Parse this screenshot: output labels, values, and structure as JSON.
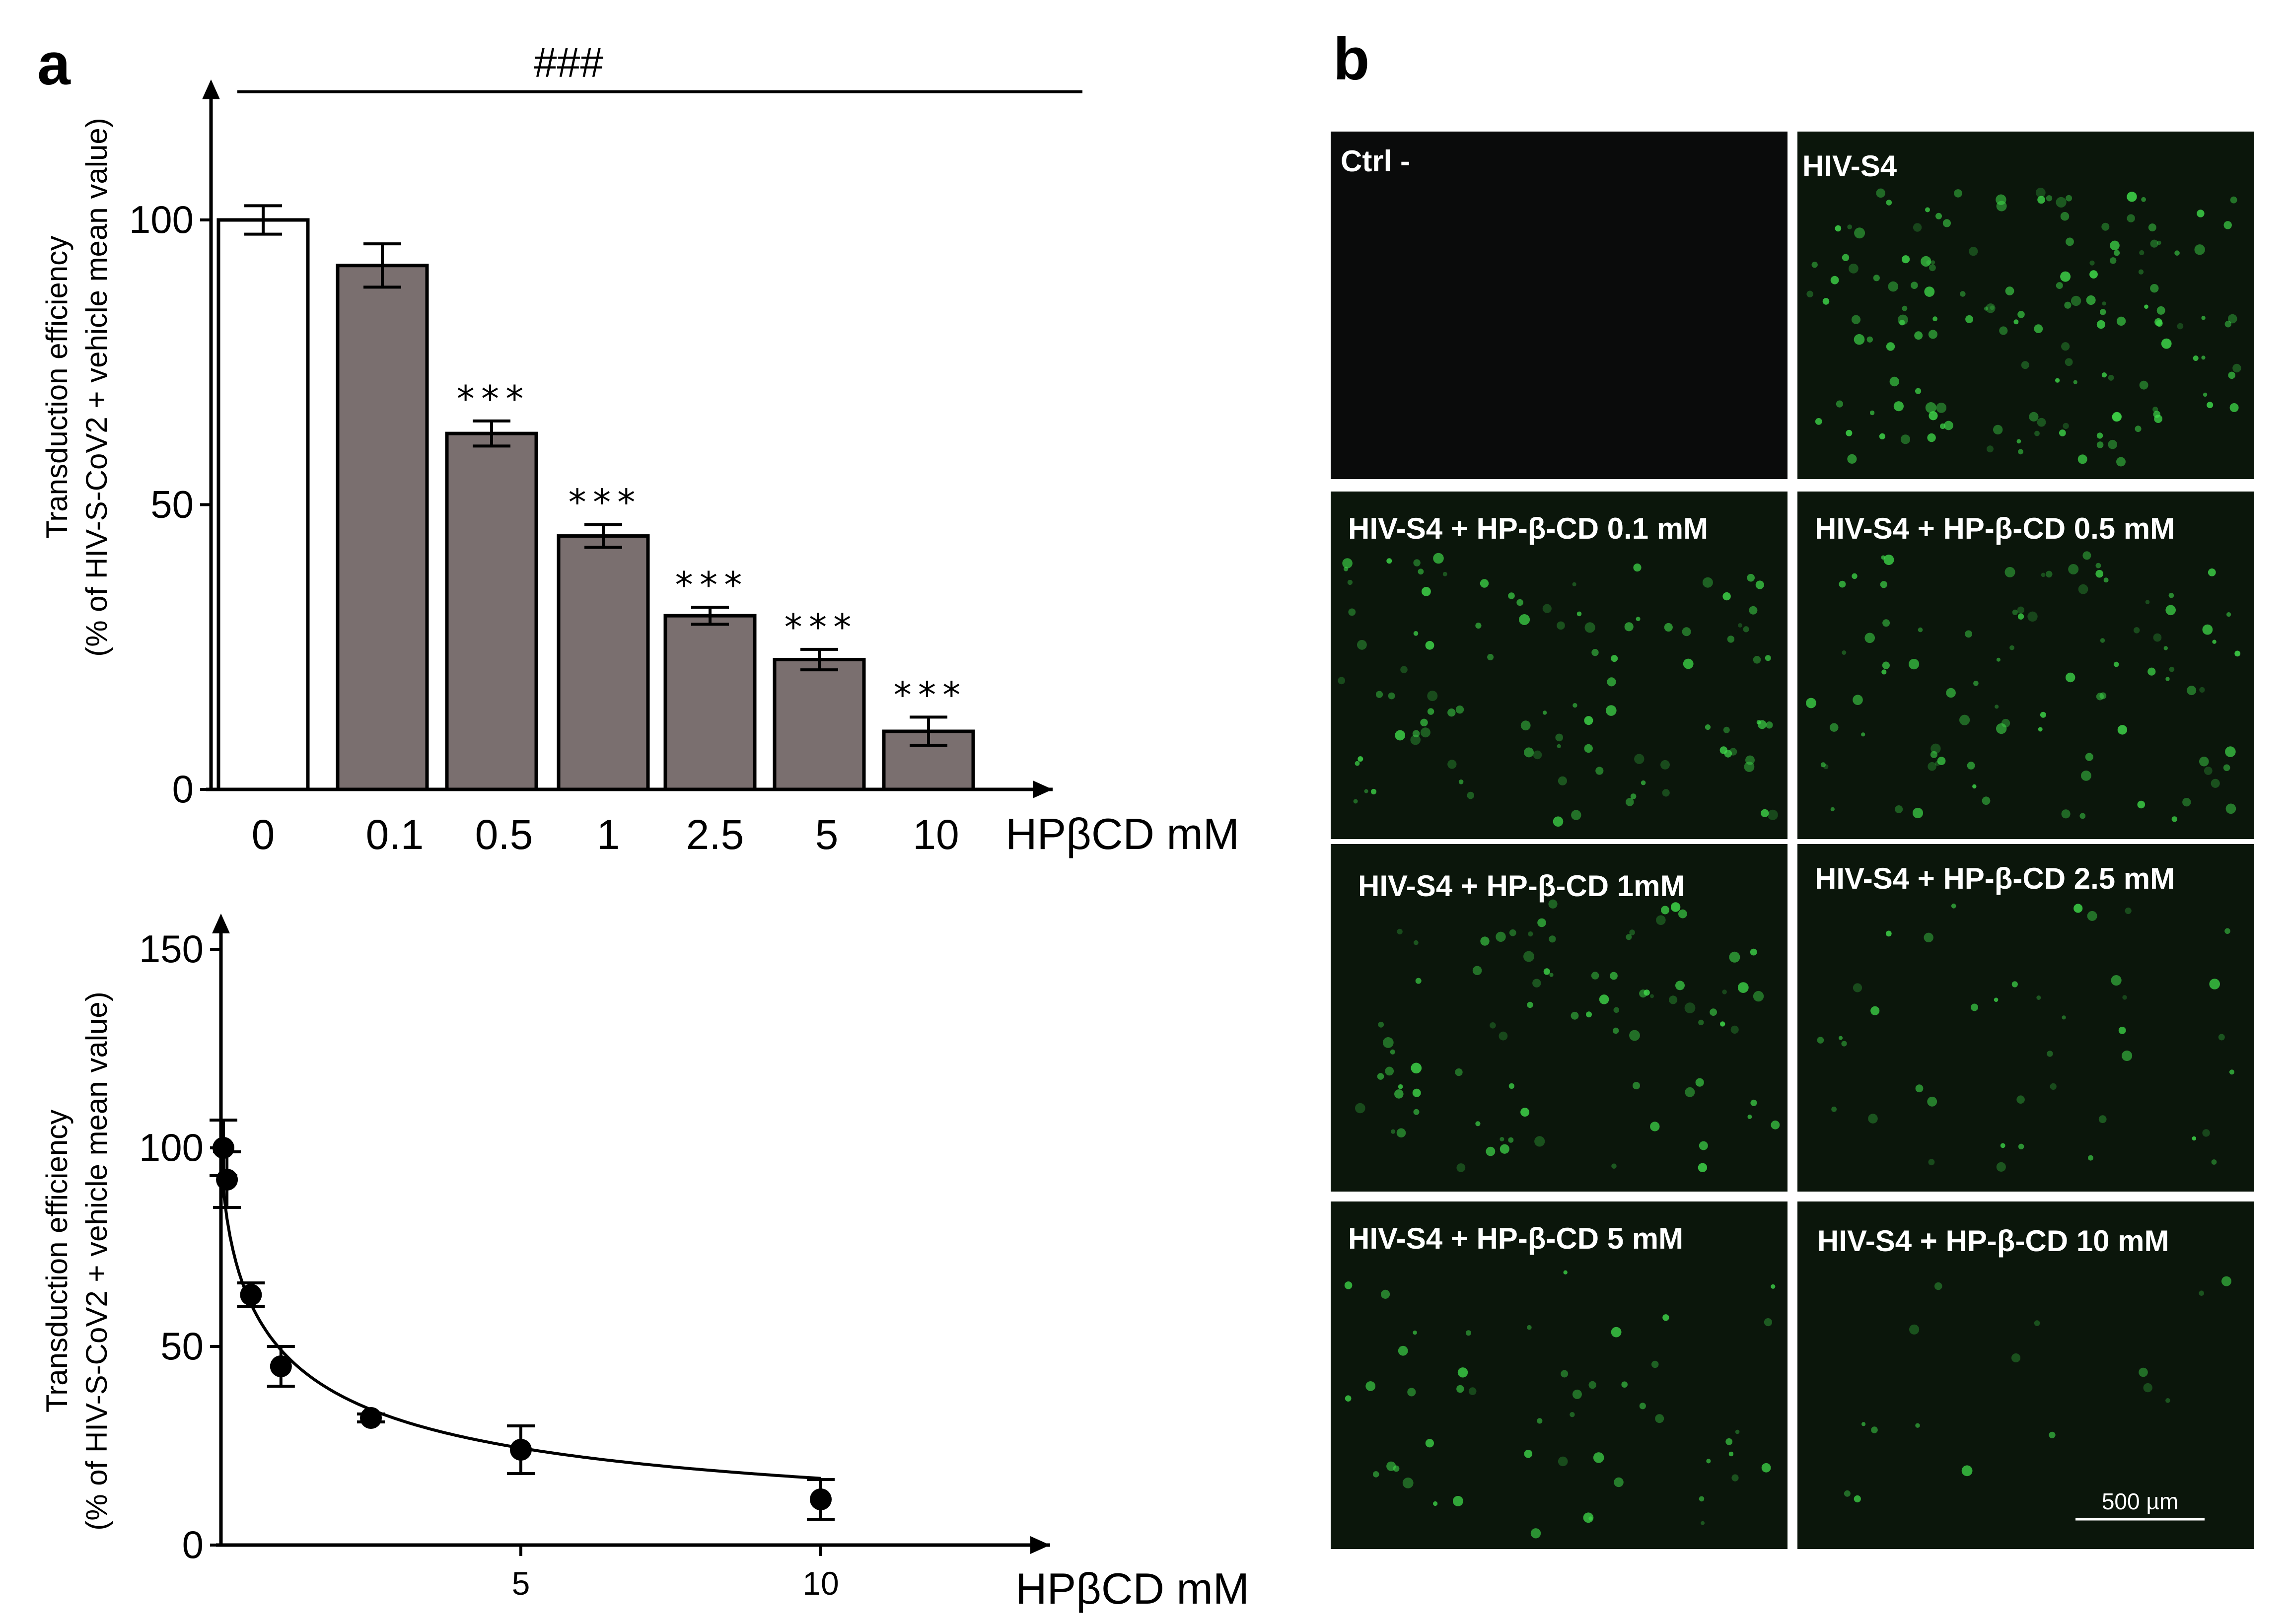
{
  "panel_a_label": "a",
  "panel_b_label": "b",
  "chart_data": [
    {
      "type": "bar",
      "title": "",
      "categories": [
        "0",
        "0.1",
        "0.5",
        "1",
        "2.5",
        "5",
        "10"
      ],
      "values": [
        100,
        92,
        62.5,
        44.5,
        30.5,
        22.8,
        10.2
      ],
      "errors": [
        2.5,
        3.8,
        2.2,
        2.0,
        1.5,
        1.8,
        2.5
      ],
      "bar_colors": [
        "#ffffff",
        "#7a6f6f",
        "#7a6f6f",
        "#7a6f6f",
        "#7a6f6f",
        "#7a6f6f",
        "#7a6f6f"
      ],
      "significance": [
        "",
        "",
        "***",
        "***",
        "***",
        "***",
        "***"
      ],
      "overall_significance": "###",
      "xlabel": "HPβCD mM",
      "ylabel_line1": "Transduction efficiency",
      "ylabel_line2": "(% of HIV-S-CoV2 + vehicle mean value)",
      "yticks": [
        0,
        50,
        100
      ],
      "ylim": [
        0,
        122
      ]
    },
    {
      "type": "scatter",
      "title": "",
      "x": [
        0,
        0.1,
        0.5,
        1,
        2.5,
        5,
        10
      ],
      "y": [
        100,
        92,
        63,
        45,
        32,
        24,
        11.5
      ],
      "errors": [
        7,
        7,
        3,
        5,
        1,
        6,
        5
      ],
      "fit": "dose-response curve",
      "xlabel": "HPβCD mM",
      "ylabel_line1": "Transduction efficiency",
      "ylabel_line2": "(% of HIV-S-CoV2 + vehicle mean value)",
      "xticks": [
        5,
        10
      ],
      "yticks": [
        0,
        50,
        100,
        150
      ],
      "xlim": [
        0,
        13.5
      ],
      "ylim": [
        0,
        155
      ]
    }
  ],
  "microscopy": {
    "panels": [
      "Ctrl -",
      "HIV-S4",
      "HIV-S4 + HP-β-CD 0.1 mM",
      "HIV-S4 + HP-β-CD 0.5 mM",
      "HIV-S4 + HP-β-CD 1mM",
      "HIV-S4 + HP-β-CD 2.5 mM",
      "HIV-S4 + HP-β-CD 5 mM",
      "HIV-S4 + HP-β-CD 10 mM"
    ],
    "signal_levels": [
      0,
      0.9,
      0.6,
      0.55,
      0.5,
      0.25,
      0.3,
      0.1
    ],
    "scale_bar": "500 µm",
    "fluorescence_color": "#3fd94a",
    "background_color": "#0b160b"
  }
}
